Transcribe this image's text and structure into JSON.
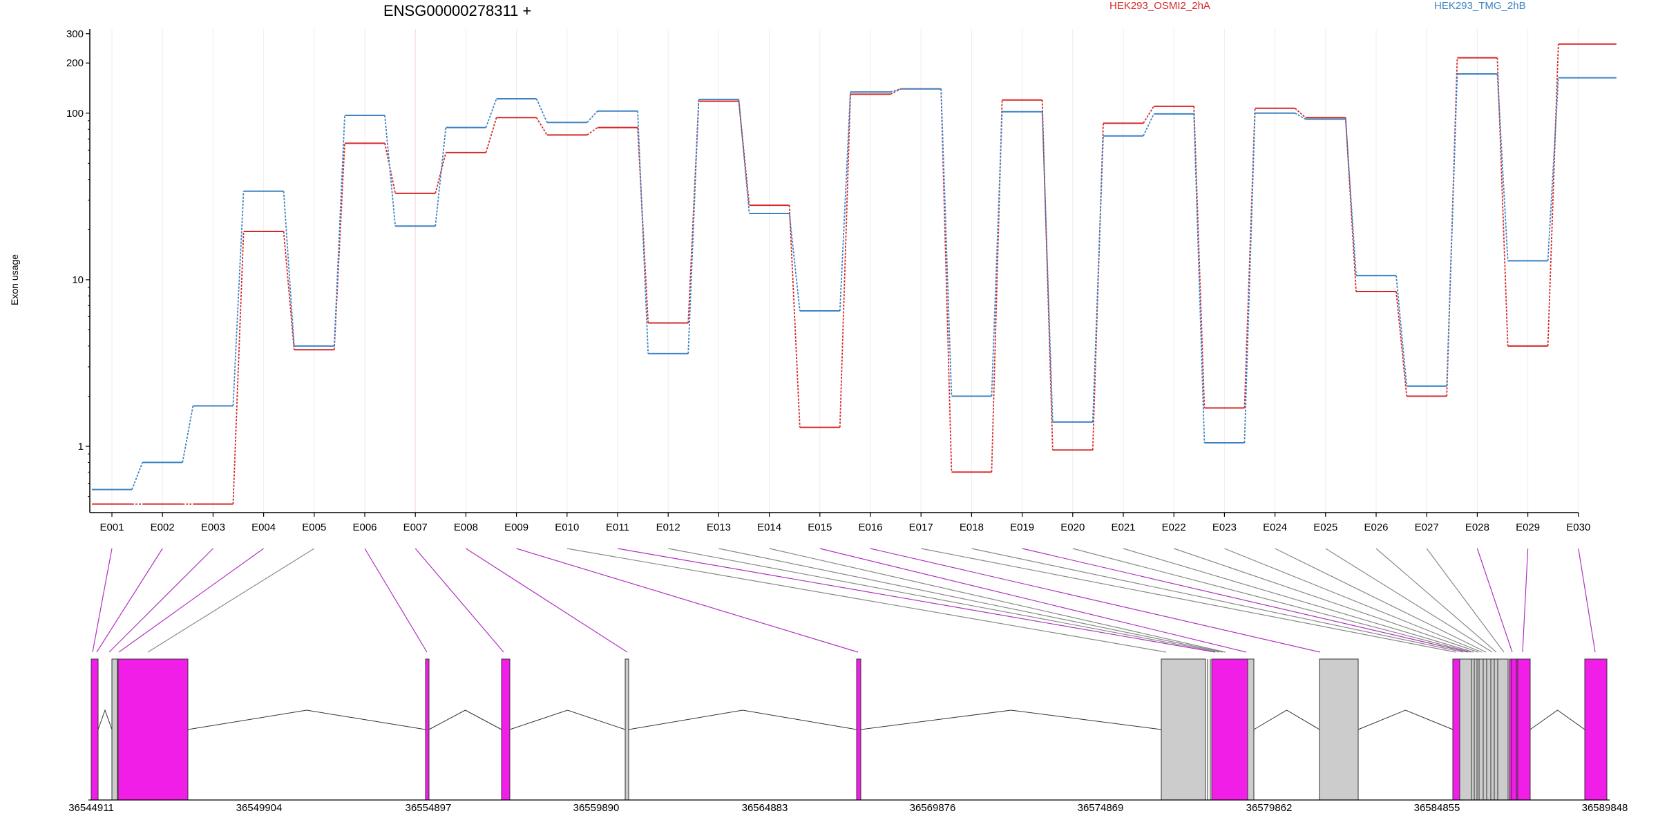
{
  "colors": {
    "cond_a": "#d62728",
    "cond_b": "#3b82c4",
    "exon_hit": "#f01ee6",
    "exon_other": "#cccccc",
    "conn_hit": "#b030c0",
    "conn_other": "#888888"
  },
  "chart_data": {
    "type": "line",
    "title": "ENSG00000278311 +",
    "ylabel": "Exon usage",
    "yscale": "log",
    "ylim": [
      0.4,
      320
    ],
    "yticks": [
      1,
      10,
      100,
      200,
      300
    ],
    "grid": "vertical",
    "legend": "top-right",
    "categories": [
      "E001",
      "E002",
      "E003",
      "E004",
      "E005",
      "E006",
      "E007",
      "E008",
      "E009",
      "E010",
      "E011",
      "E012",
      "E013",
      "E014",
      "E015",
      "E016",
      "E017",
      "E018",
      "E019",
      "E020",
      "E021",
      "E022",
      "E023",
      "E024",
      "E025",
      "E026",
      "E027",
      "E028",
      "E029",
      "E030"
    ],
    "series": [
      {
        "name": "HEK293_OSMI2_2hA",
        "color": "#d62728",
        "values": [
          0.45,
          0.45,
          0.45,
          19.5,
          3.8,
          66,
          33,
          58,
          94,
          74,
          82,
          5.5,
          118,
          28,
          1.3,
          130,
          140,
          0.7,
          120,
          0.95,
          87,
          110,
          1.7,
          107,
          94,
          8.5,
          2,
          215,
          4,
          260
        ]
      },
      {
        "name": "HEK293_TMG_2hB",
        "color": "#3b82c4",
        "values": [
          0.55,
          0.8,
          1.75,
          34,
          4,
          97,
          21,
          82,
          122,
          88,
          103,
          3.6,
          121,
          25,
          6.5,
          134,
          140,
          2,
          102,
          1.4,
          73,
          99,
          1.05,
          100,
          92,
          10.6,
          2.3,
          172,
          13,
          163
        ]
      }
    ],
    "exon_hits": [
      true,
      true,
      true,
      true,
      false,
      true,
      true,
      true,
      true,
      false,
      true,
      false,
      false,
      false,
      true,
      true,
      false,
      false,
      true,
      false,
      false,
      false,
      false,
      false,
      false,
      false,
      false,
      true,
      true,
      true
    ],
    "genome_ticks": [
      "36544911",
      "36549904",
      "36554897",
      "36559890",
      "36564883",
      "36569876",
      "36574869",
      "36579862",
      "36584855",
      "36589848"
    ]
  }
}
